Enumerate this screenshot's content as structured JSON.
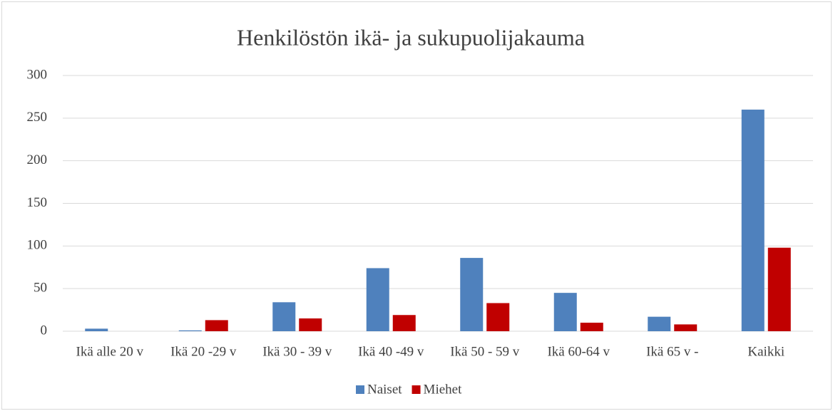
{
  "chart_data": {
    "type": "bar",
    "title": "Henkilöstön ikä- ja sukupuolijakauma",
    "categories": [
      "Ikä alle 20 v",
      "Ikä 20 -29 v",
      "Ikä 30 - 39 v",
      "Ikä 40 -49 v",
      "Ikä 50 - 59 v",
      "Ikä 60-64 v",
      "Ikä 65 v -",
      "Kaikki"
    ],
    "series": [
      {
        "name": "Naiset",
        "color": "#4f81bd",
        "values": [
          3,
          1,
          34,
          74,
          86,
          45,
          17,
          260
        ]
      },
      {
        "name": "Miehet",
        "color": "#c00000",
        "values": [
          0,
          13,
          15,
          19,
          33,
          10,
          8,
          98
        ]
      }
    ],
    "ylim": [
      0,
      300
    ],
    "yticks": [
      0,
      50,
      100,
      150,
      200,
      250,
      300
    ],
    "grid": true,
    "legend": "bottom"
  }
}
